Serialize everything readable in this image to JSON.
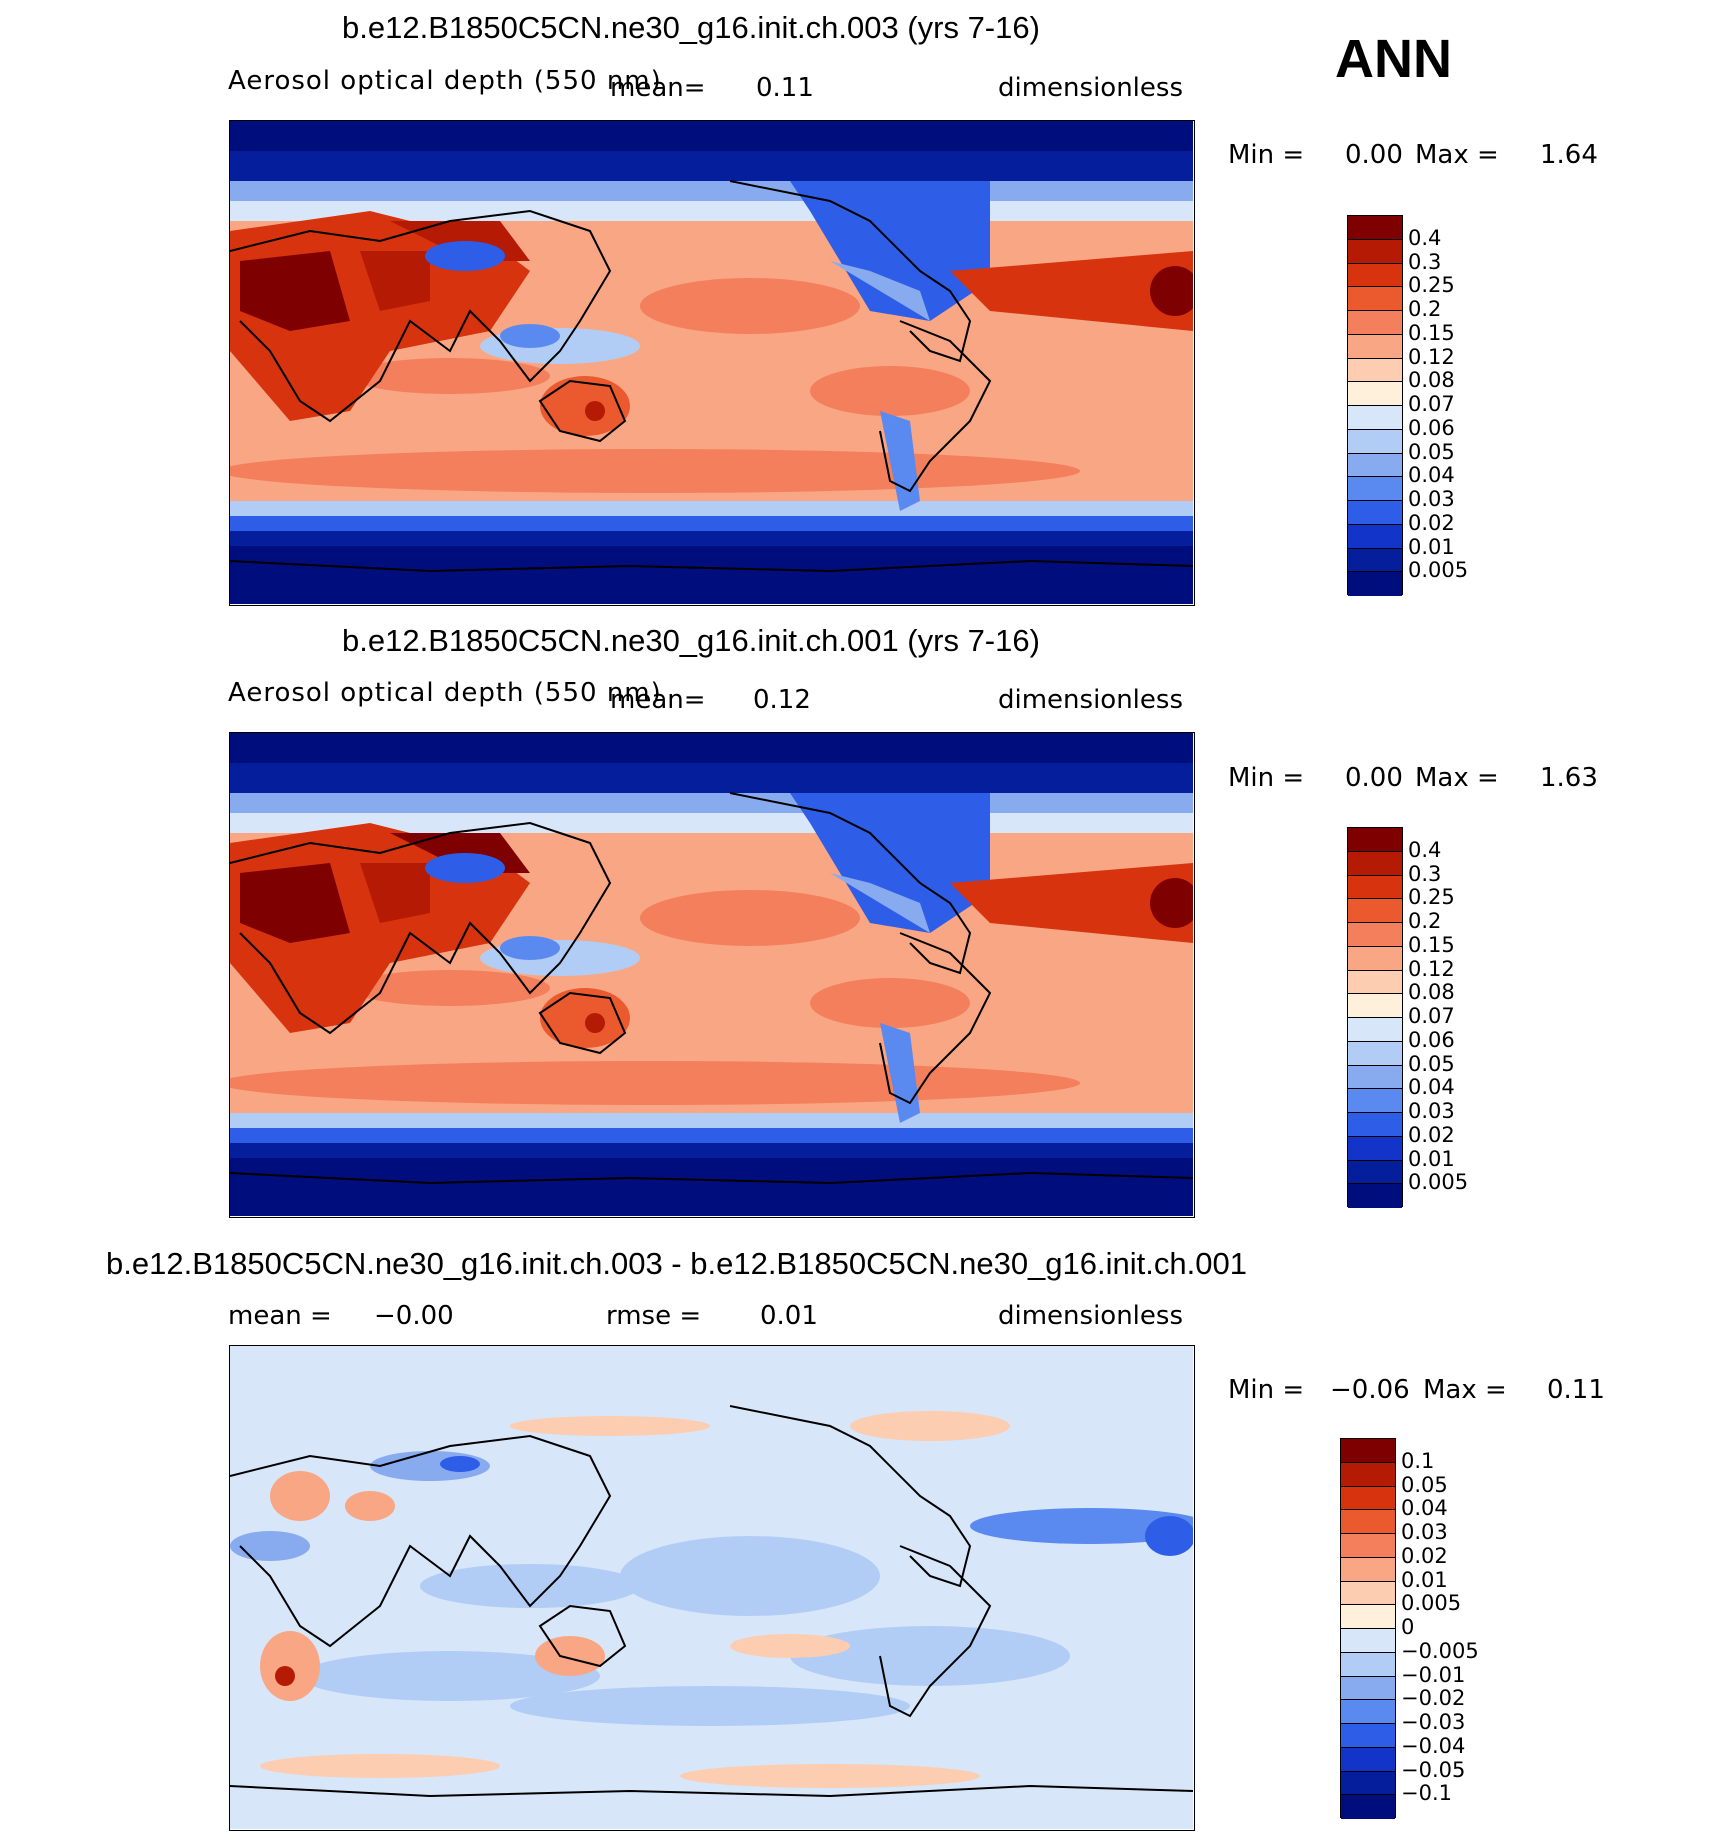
{
  "season": "ANN",
  "panels": [
    {
      "title": "b.e12.B1850C5CN.ne30_g16.init.ch.003 (yrs 7-16)",
      "left_text": "Aerosol optical depth (550 nm)",
      "mid_text": "mean=",
      "mid_value": "0.11",
      "units": "dimensionless",
      "min_label": "Min =",
      "min_value": "0.00",
      "max_label": "Max =",
      "max_value": "1.64",
      "levels": [
        "0.4",
        "0.3",
        "0.25",
        "0.2",
        "0.15",
        "0.12",
        "0.08",
        "0.07",
        "0.06",
        "0.05",
        "0.04",
        "0.03",
        "0.02",
        "0.01",
        "0.005"
      ],
      "colors": [
        "#7f0000",
        "#b51a04",
        "#d6330e",
        "#ea5a2e",
        "#f47f5c",
        "#f9a684",
        "#fccdb0",
        "#fff0dc",
        "#d8e6fa",
        "#b2cdf5",
        "#88abf0",
        "#5a8aef",
        "#2e5ee8",
        "#1234c8",
        "#051f9c",
        "#000e7d"
      ]
    },
    {
      "title": "b.e12.B1850C5CN.ne30_g16.init.ch.001 (yrs 7-16)",
      "left_text": "Aerosol optical depth (550 nm)",
      "mid_text": "mean=",
      "mid_value": "0.12",
      "units": "dimensionless",
      "min_label": "Min =",
      "min_value": "0.00",
      "max_label": "Max =",
      "max_value": "1.63",
      "levels": [
        "0.4",
        "0.3",
        "0.25",
        "0.2",
        "0.15",
        "0.12",
        "0.08",
        "0.07",
        "0.06",
        "0.05",
        "0.04",
        "0.03",
        "0.02",
        "0.01",
        "0.005"
      ],
      "colors": [
        "#7f0000",
        "#b51a04",
        "#d6330e",
        "#ea5a2e",
        "#f47f5c",
        "#f9a684",
        "#fccdb0",
        "#fff0dc",
        "#d8e6fa",
        "#b2cdf5",
        "#88abf0",
        "#5a8aef",
        "#2e5ee8",
        "#1234c8",
        "#051f9c",
        "#000e7d"
      ]
    },
    {
      "title": "b.e12.B1850C5CN.ne30_g16.init.ch.003 - b.e12.B1850C5CN.ne30_g16.init.ch.001",
      "left_text": "mean =",
      "left_value": "−0.00",
      "mid_text": "rmse =",
      "mid_value": "0.01",
      "units": "dimensionless",
      "min_label": "Min =",
      "min_value": "−0.06",
      "max_label": "Max =",
      "max_value": "0.11",
      "levels": [
        "0.1",
        "0.05",
        "0.04",
        "0.03",
        "0.02",
        "0.01",
        "0.005",
        "0",
        "−0.005",
        "−0.01",
        "−0.02",
        "−0.03",
        "−0.04",
        "−0.05",
        "−0.1"
      ],
      "colors": [
        "#7f0000",
        "#b51a04",
        "#d6330e",
        "#ea5a2e",
        "#f47f5c",
        "#f9a684",
        "#fccdb0",
        "#fff0dc",
        "#d8e6fa",
        "#b2cdf5",
        "#88abf0",
        "#5a8aef",
        "#2e5ee8",
        "#1234c8",
        "#051f9c",
        "#000e7d"
      ]
    }
  ]
}
